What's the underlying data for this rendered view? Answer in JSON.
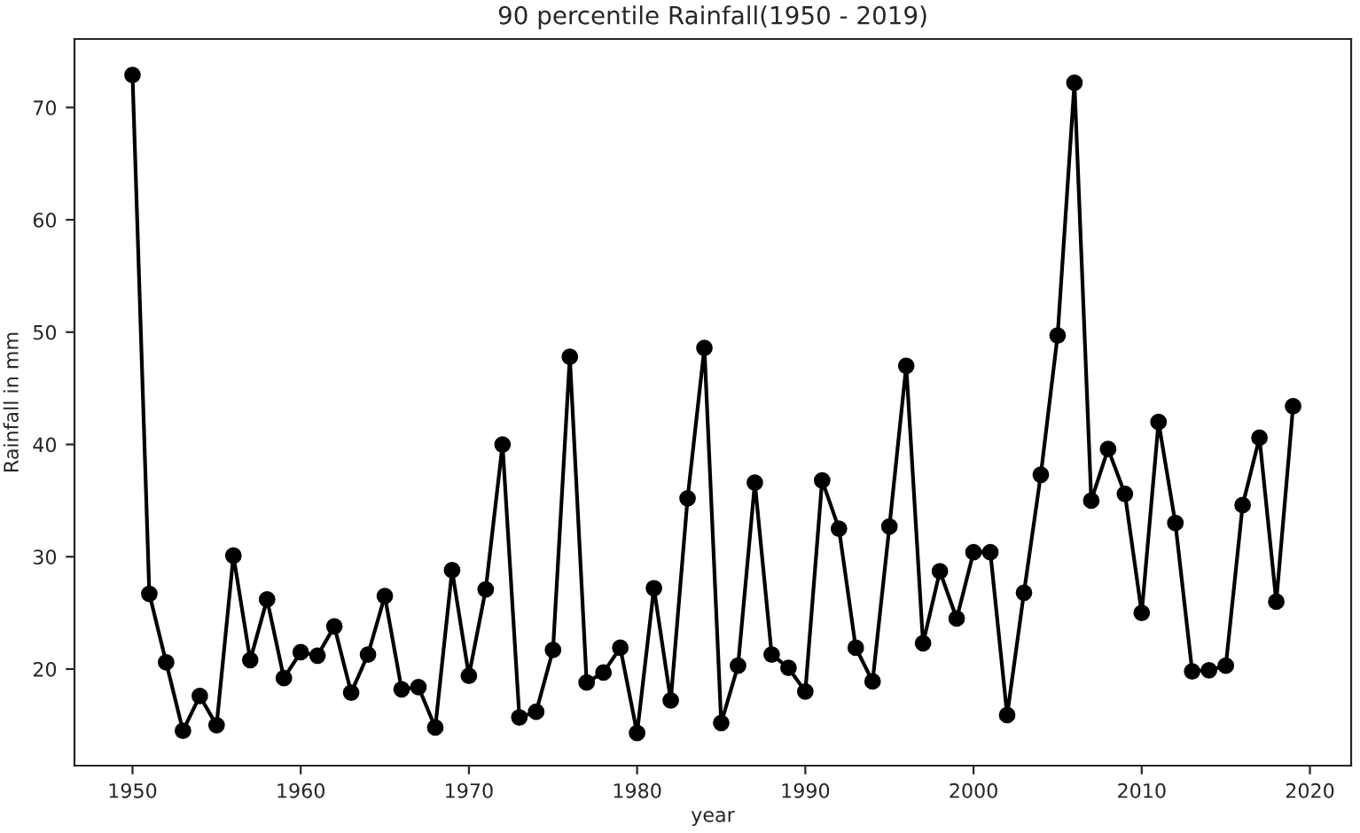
{
  "chart_data": {
    "type": "line",
    "title": "90 percentile Rainfall(1950 - 2019)",
    "xlabel": "year",
    "ylabel": "Rainfall in mm",
    "x": [
      1950,
      1951,
      1952,
      1953,
      1954,
      1955,
      1956,
      1957,
      1958,
      1959,
      1960,
      1961,
      1962,
      1963,
      1964,
      1965,
      1966,
      1967,
      1968,
      1969,
      1970,
      1971,
      1972,
      1973,
      1974,
      1975,
      1976,
      1977,
      1978,
      1979,
      1980,
      1981,
      1982,
      1983,
      1984,
      1985,
      1986,
      1987,
      1988,
      1989,
      1990,
      1991,
      1992,
      1993,
      1994,
      1995,
      1996,
      1997,
      1998,
      1999,
      2000,
      2001,
      2002,
      2003,
      2004,
      2005,
      2006,
      2007,
      2008,
      2009,
      2010,
      2011,
      2012,
      2013,
      2014,
      2015,
      2016,
      2017,
      2018,
      2019
    ],
    "series": [
      {
        "color": "#000000",
        "values": [
          72.9,
          26.7,
          20.6,
          14.5,
          17.6,
          15.0,
          30.1,
          20.8,
          26.2,
          19.2,
          21.5,
          21.2,
          23.8,
          17.9,
          21.3,
          26.5,
          18.2,
          18.4,
          14.8,
          28.8,
          19.4,
          27.1,
          40.0,
          15.7,
          16.2,
          21.7,
          47.8,
          18.8,
          19.7,
          21.9,
          14.3,
          27.2,
          17.2,
          35.2,
          48.6,
          15.2,
          20.3,
          36.6,
          21.3,
          20.1,
          18.0,
          36.8,
          32.5,
          21.9,
          18.9,
          32.7,
          47.0,
          22.3,
          28.7,
          24.5,
          30.4,
          30.4,
          15.9,
          26.8,
          37.3,
          49.7,
          72.2,
          35.0,
          39.6,
          35.6,
          25.0,
          42.0,
          33.0,
          19.8,
          19.9,
          20.3,
          34.6,
          40.6,
          26.0,
          43.4
        ]
      }
    ],
    "xlim": [
      1946.55,
      2022.45
    ],
    "xticks": [
      1950,
      1960,
      1970,
      1980,
      1990,
      2000,
      2010,
      2020
    ],
    "ylim": [
      11.4,
      76.1
    ],
    "yticks": [
      20,
      30,
      40,
      50,
      60,
      70
    ],
    "marker": "circle",
    "line_style": "solid",
    "grid": false,
    "legend": false
  }
}
